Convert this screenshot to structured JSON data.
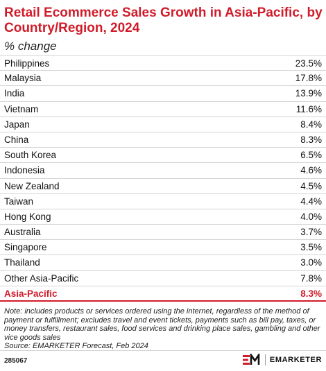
{
  "chart_data": {
    "type": "table",
    "title": "Retail Ecommerce Sales Growth in Asia-Pacific, by Country/Region, 2024",
    "subtitle": "% change",
    "rows": [
      {
        "label": "Philippines",
        "value": "23.5%"
      },
      {
        "label": "Malaysia",
        "value": "17.8%"
      },
      {
        "label": "India",
        "value": "13.9%"
      },
      {
        "label": "Vietnam",
        "value": "11.6%"
      },
      {
        "label": "Japan",
        "value": "8.4%"
      },
      {
        "label": "China",
        "value": "8.3%"
      },
      {
        "label": "South Korea",
        "value": "6.5%"
      },
      {
        "label": "Indonesia",
        "value": "4.6%"
      },
      {
        "label": "New Zealand",
        "value": "4.5%"
      },
      {
        "label": "Taiwan",
        "value": "4.4%"
      },
      {
        "label": "Hong Kong",
        "value": "4.0%"
      },
      {
        "label": "Australia",
        "value": "3.7%"
      },
      {
        "label": "Singapore",
        "value": "3.5%"
      },
      {
        "label": "Thailand",
        "value": "3.0%"
      },
      {
        "label": "Other Asia-Pacific",
        "value": "7.8%"
      }
    ],
    "total": {
      "label": "Asia-Pacific",
      "value": "8.3%"
    },
    "note": "Note: includes products or services ordered using the internet, regardless of the method of payment or fulfillment; excludes travel and event tickets, payments such as bill pay, taxes, or money transfers, restaurant sales, food services and drinking place sales, gambling and other vice goods sales",
    "source": "Source: EMARKETER Forecast, Feb 2024"
  },
  "footer": {
    "chart_id": "285067",
    "brand": "EMARKETER"
  },
  "colors": {
    "accent": "#d01c2a",
    "rule": "#d4d4d4"
  }
}
